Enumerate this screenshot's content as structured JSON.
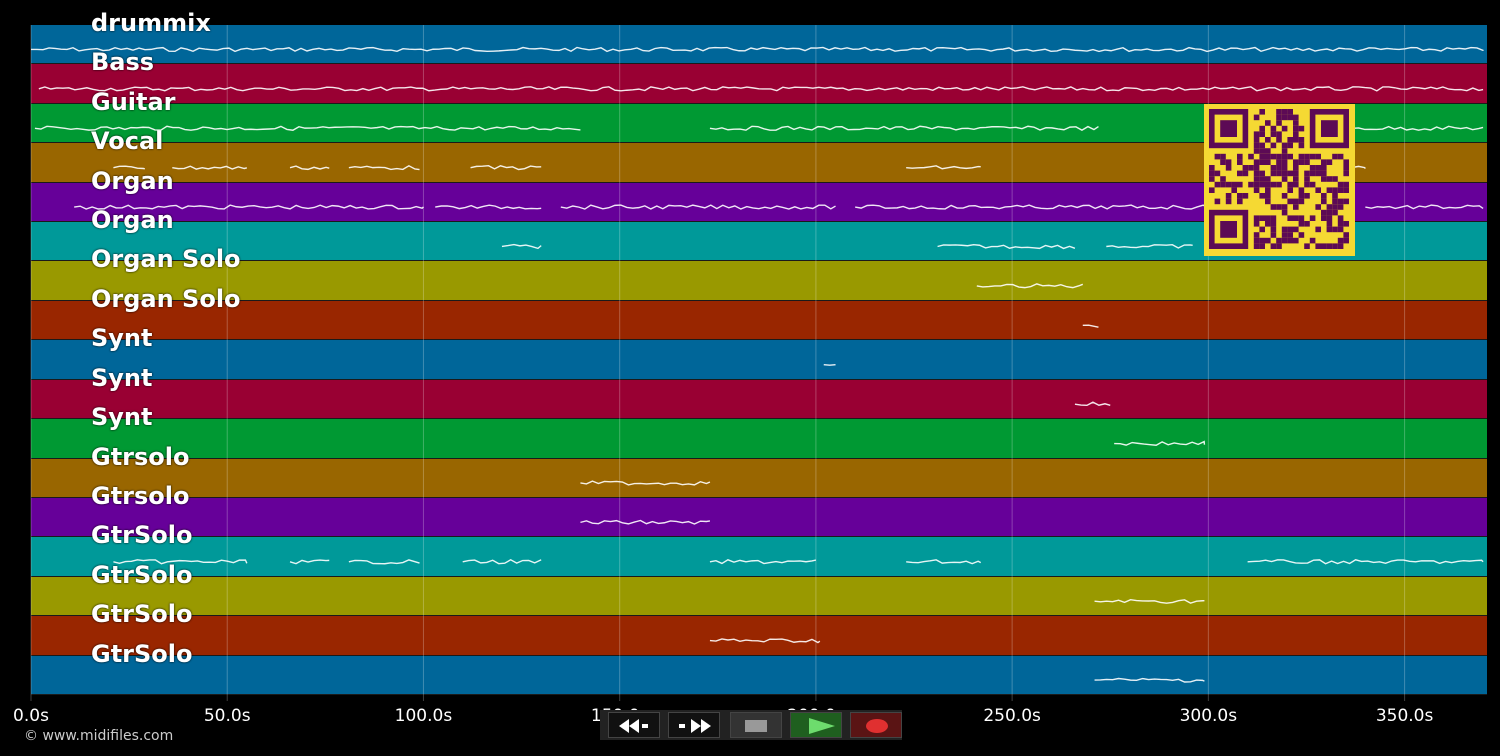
{
  "tracks": [
    {
      "name": "drummix",
      "color": "#006699"
    },
    {
      "name": "Bass",
      "color": "#990033"
    },
    {
      "name": "Guitar",
      "color": "#009933"
    },
    {
      "name": "Vocal",
      "color": "#996600"
    },
    {
      "name": "Organ",
      "color": "#660099"
    },
    {
      "name": "Organ",
      "color": "#009999"
    },
    {
      "name": "Organ Solo",
      "color": "#999900"
    },
    {
      "name": "Organ Solo",
      "color": "#992600"
    },
    {
      "name": "Synt",
      "color": "#006699"
    },
    {
      "name": "Synt",
      "color": "#990033"
    },
    {
      "name": "Synt",
      "color": "#009933"
    },
    {
      "name": "Gtrsolo",
      "color": "#996600"
    },
    {
      "name": "Gtrsolo",
      "color": "#660099"
    },
    {
      "name": "GtrSolo",
      "color": "#009999"
    },
    {
      "name": "GtrSolo",
      "color": "#999900"
    },
    {
      "name": "GtrSolo",
      "color": "#992600"
    },
    {
      "name": "GtrSolo",
      "color": "#006699"
    }
  ],
  "time_axis": {
    "max_seconds": 371,
    "ticks": [
      {
        "value": 0,
        "label": "0.0s"
      },
      {
        "value": 50,
        "label": "50.0s"
      },
      {
        "value": 100,
        "label": "100.0s"
      },
      {
        "value": 150,
        "label": "150.0s"
      },
      {
        "value": 200,
        "label": "200.0s"
      },
      {
        "value": 250,
        "label": "250.0s"
      },
      {
        "value": 300,
        "label": "300.0s"
      },
      {
        "value": 350,
        "label": "350.0s"
      }
    ]
  },
  "note_segments": [
    [
      [
        0,
        370
      ]
    ],
    [
      [
        2,
        370
      ]
    ],
    [
      [
        1,
        140
      ],
      [
        173,
        272
      ],
      [
        323,
        370
      ]
    ],
    [
      [
        21,
        29
      ],
      [
        36,
        55
      ],
      [
        66,
        76
      ],
      [
        81,
        99
      ],
      [
        112,
        130
      ],
      [
        223,
        242
      ],
      [
        323,
        340
      ]
    ],
    [
      [
        11,
        100
      ],
      [
        103,
        130
      ],
      [
        135,
        205
      ],
      [
        210,
        335
      ],
      [
        340,
        370
      ]
    ],
    [
      [
        120,
        130
      ],
      [
        231,
        266
      ],
      [
        274,
        296
      ]
    ],
    [
      [
        241,
        268
      ]
    ],
    [
      [
        268,
        272
      ]
    ],
    [
      [
        202,
        205
      ]
    ],
    [
      [
        266,
        275
      ]
    ],
    [
      [
        276,
        299
      ]
    ],
    [
      [
        140,
        173
      ]
    ],
    [
      [
        140,
        173
      ]
    ],
    [
      [
        21,
        55
      ],
      [
        66,
        76
      ],
      [
        81,
        99
      ],
      [
        110,
        130
      ],
      [
        173,
        200
      ],
      [
        223,
        242
      ],
      [
        310,
        370
      ]
    ],
    [
      [
        271,
        299
      ]
    ],
    [
      [
        173,
        201
      ]
    ],
    [
      [
        271,
        299
      ]
    ]
  ],
  "transport": [
    {
      "name": "rewind-button",
      "icon": "rewind-icon"
    },
    {
      "name": "fast-forward-button",
      "icon": "fast-forward-icon"
    },
    {
      "name": "stop-button",
      "icon": "stop-icon"
    },
    {
      "name": "play-button",
      "icon": "play-icon"
    },
    {
      "name": "record-button",
      "icon": "record-icon"
    }
  ],
  "qr_color": "#f5d933",
  "qr_dark": "#5c0a55",
  "copyright": "© www.midifiles.com"
}
